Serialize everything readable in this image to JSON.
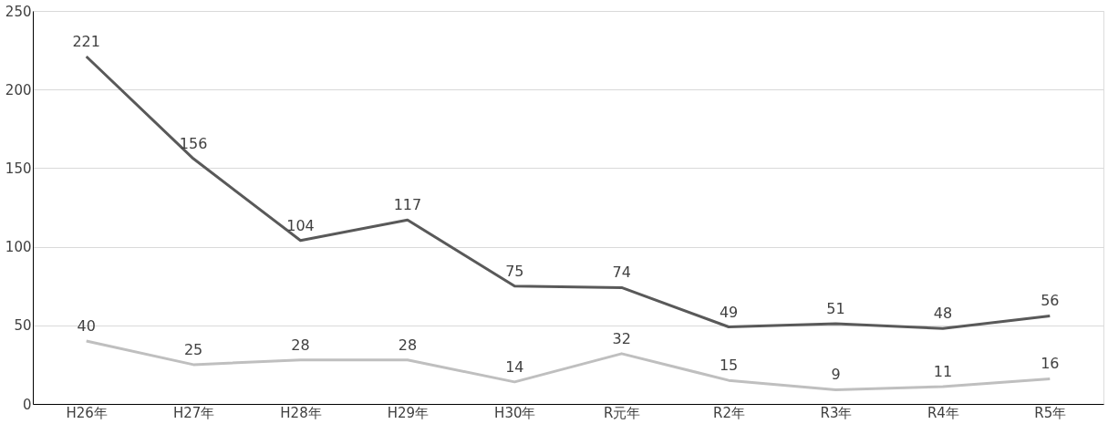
{
  "chart_data": {
    "type": "line",
    "categories": [
      "H26年",
      "H27年",
      "H28年",
      "H29年",
      "H30年",
      "R元年",
      "R2年",
      "R3年",
      "R4年",
      "R5年"
    ],
    "series": [
      {
        "color": "#595959",
        "values": [
          221,
          156,
          104,
          117,
          75,
          74,
          49,
          51,
          48,
          56
        ]
      },
      {
        "color": "#bfbfbf",
        "values": [
          40,
          25,
          28,
          28,
          14,
          32,
          15,
          9,
          11,
          16
        ]
      }
    ],
    "ylim": [
      0,
      250
    ],
    "yticks": [
      0,
      50,
      100,
      150,
      200,
      250
    ],
    "grid": "y",
    "data_labels": true,
    "legend": false,
    "marker": "none",
    "line_style": "solid"
  }
}
